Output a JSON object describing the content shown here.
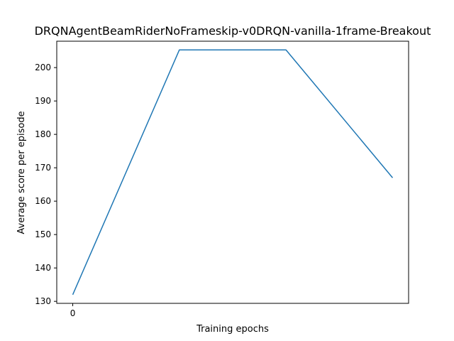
{
  "chart_data": {
    "type": "line",
    "title": "DRQNAgentBeamRiderNoFrameskip-v0DRQN-vanilla-1frame-Breakout",
    "xlabel": "Training epochs",
    "ylabel": "Average score per episode",
    "x": [
      0,
      1,
      2,
      3
    ],
    "x_ticks": [
      0
    ],
    "x_tick_labels": [
      "0"
    ],
    "xlim": [
      -0.15,
      3.15
    ],
    "ylim": [
      129.4,
      207.9
    ],
    "y_ticks": [
      130,
      140,
      150,
      160,
      170,
      180,
      190,
      200
    ],
    "y_tick_labels": [
      "130",
      "140",
      "150",
      "160",
      "170",
      "180",
      "190",
      "200"
    ],
    "series": [
      {
        "values": [
          132.0,
          205.3,
          205.3,
          167.0
        ],
        "color": "#1f77b4"
      }
    ],
    "grid": false,
    "legend": "none"
  }
}
